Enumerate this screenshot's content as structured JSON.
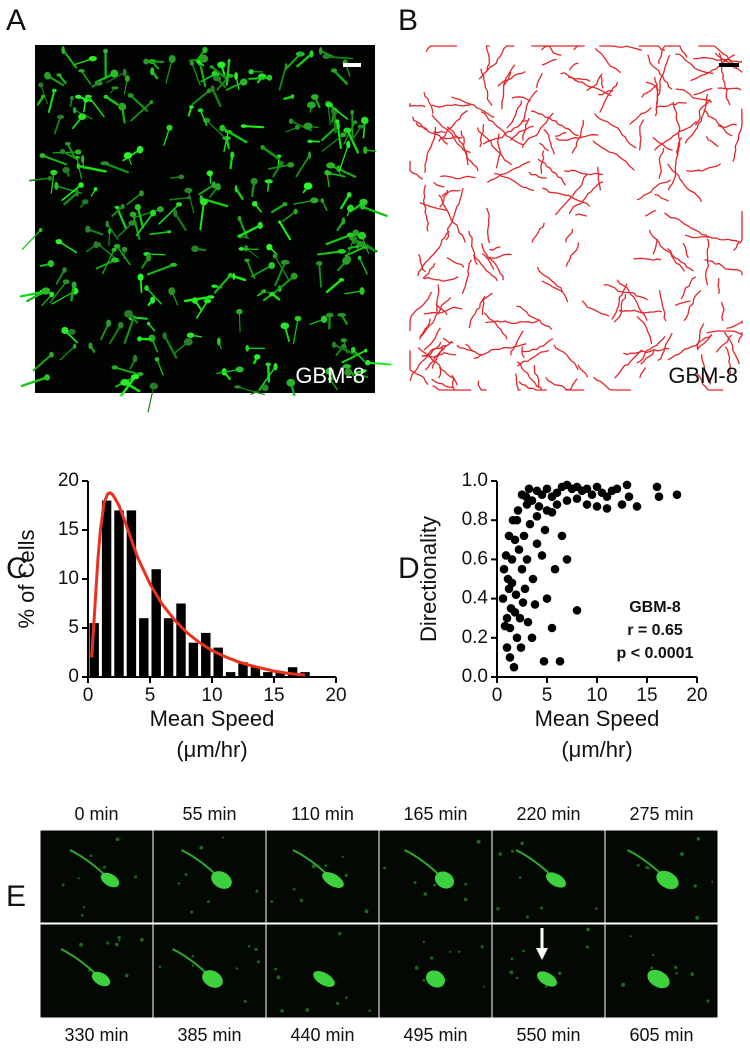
{
  "panel_labels": [
    "A",
    "B",
    "C",
    "D",
    "E"
  ],
  "images": {
    "A": {
      "label": "GBM-8"
    },
    "B": {
      "label": "GBM-8"
    }
  },
  "chart_data": [
    {
      "type": "histogram",
      "y_label": "% of Cells",
      "x_label": [
        "Mean Speed",
        "(μm/hr)"
      ],
      "bins": [
        0,
        1,
        2,
        3,
        4,
        5,
        6,
        7,
        8,
        9,
        10,
        11,
        12,
        13,
        14,
        15,
        16,
        17,
        18
      ],
      "values": [
        5.5,
        18,
        17,
        17,
        6,
        11,
        6,
        7.5,
        3.5,
        4.5,
        3,
        0.5,
        1.5,
        1,
        0.5,
        0.5,
        1,
        0.5
      ],
      "color": "#000000",
      "fit": {
        "color": "#e8321e",
        "x": [
          0.3,
          0.5,
          0.8,
          1,
          1.3,
          1.6,
          1.8,
          2,
          2.5,
          3,
          3.5,
          4,
          5,
          6,
          7,
          8,
          9,
          10,
          11,
          12,
          13,
          14,
          15,
          16,
          17,
          17.5
        ],
        "values": [
          2,
          6,
          12,
          15,
          17.8,
          18.7,
          18.8,
          18.6,
          17.5,
          15.8,
          14,
          12.2,
          9.5,
          7.4,
          5.8,
          4.5,
          3.5,
          2.7,
          2.1,
          1.6,
          1.2,
          0.9,
          0.6,
          0.4,
          0.25,
          0.2
        ]
      },
      "xlim": [
        0,
        20
      ],
      "xticks": [
        0,
        5,
        10,
        15,
        20
      ],
      "ylim": [
        0,
        20
      ],
      "yticks": [
        0,
        5,
        10,
        15,
        20
      ]
    },
    {
      "type": "scatter",
      "y_label": "Directionality",
      "x_label": [
        "Mean Speed",
        "(μm/hr)"
      ],
      "annotations": [
        "GBM-8",
        "r = 0.65",
        "p < 0.0001"
      ],
      "color": "#000000",
      "x": [
        4,
        4.5,
        5,
        5.5,
        6,
        6.5,
        7,
        7.5,
        8,
        8.5,
        9,
        9.5,
        10,
        10.5,
        11,
        11.5,
        12,
        13,
        13.2,
        14,
        16,
        16.2,
        18,
        12.5,
        10,
        9,
        7,
        6,
        5,
        4,
        3.5,
        3,
        2.5,
        3.2,
        4.2,
        5.5,
        8,
        11,
        0.8,
        1,
        1.2,
        1.5,
        1.8,
        2,
        2.2,
        2.5,
        1,
        1.3,
        1.7,
        2,
        0.6,
        1.1,
        1.4,
        1.9,
        2.3,
        2.7,
        3,
        3.3,
        3.6,
        4,
        4.5,
        5,
        5.5,
        6.3,
        5.8,
        4.8,
        3.8,
        2.8,
        2.1,
        1.6,
        1.2,
        0.9,
        0.7,
        1.3,
        2.4,
        3.1,
        4.7,
        8,
        7,
        6.5,
        3.5,
        2.9,
        1.8,
        1.5,
        2.6
      ],
      "y": [
        0.95,
        0.93,
        0.96,
        0.92,
        0.94,
        0.97,
        0.98,
        0.96,
        0.97,
        0.95,
        0.96,
        0.93,
        0.97,
        0.94,
        0.92,
        0.95,
        0.96,
        0.98,
        0.92,
        0.87,
        0.97,
        0.92,
        0.93,
        0.88,
        0.87,
        0.88,
        0.9,
        0.88,
        0.85,
        0.82,
        0.9,
        0.88,
        0.93,
        0.96,
        0.87,
        0.84,
        0.91,
        0.86,
        0.26,
        0.3,
        0.45,
        0.6,
        0.7,
        0.8,
        0.65,
        0.55,
        0.15,
        0.1,
        0.05,
        0.2,
        0.4,
        0.5,
        0.35,
        0.42,
        0.3,
        0.72,
        0.6,
        0.78,
        0.5,
        0.68,
        0.62,
        0.4,
        0.25,
        0.08,
        0.55,
        0.75,
        0.37,
        0.45,
        0.85,
        0.8,
        0.72,
        0.62,
        0.55,
        0.25,
        0.15,
        0.28,
        0.08,
        0.34,
        0.6,
        0.72,
        0.2,
        0.92,
        0.33,
        0.48,
        0.38
      ],
      "xlim": [
        0,
        20
      ],
      "xticks": [
        0,
        5,
        10,
        15,
        20
      ],
      "ylim": [
        0,
        1
      ],
      "yticks": [
        {
          "value": 0,
          "label": "0.0"
        },
        0.2,
        0.4,
        0.6,
        0.8,
        {
          "value": 1,
          "label": "1.0"
        }
      ]
    }
  ],
  "timelapse": {
    "top_labels": [
      "0 min",
      "55 min",
      "110 min",
      "165 min",
      "220 min",
      "275 min"
    ],
    "bottom_labels": [
      "330 min",
      "385 min",
      "440 min",
      "495 min",
      "550 min",
      "605 min"
    ]
  }
}
